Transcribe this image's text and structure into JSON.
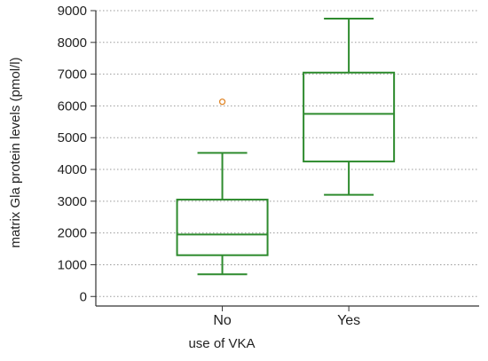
{
  "chart_data": {
    "type": "box",
    "title": "",
    "xlabel": "use of VKA",
    "ylabel": "matrix Gla protein levels  (pmol/l)",
    "ylim": [
      -300,
      9000
    ],
    "yticks": [
      0,
      1000,
      2000,
      3000,
      4000,
      5000,
      6000,
      7000,
      8000,
      9000
    ],
    "grid": "horizontal-dotted",
    "categories": [
      "No",
      "Yes"
    ],
    "boxes": [
      {
        "category": "No",
        "whisker_low": 700,
        "q1": 1300,
        "median": 1950,
        "q3": 3050,
        "whisker_high": 4520,
        "outliers": [
          6130
        ]
      },
      {
        "category": "Yes",
        "whisker_low": 3200,
        "q1": 4250,
        "median": 5750,
        "q3": 7050,
        "whisker_high": 8750,
        "outliers": []
      }
    ],
    "colors": {
      "box": "#2e8b2e",
      "outlier": "#e0872a",
      "grid": "#9a9a9a",
      "axis": "#333333"
    }
  }
}
